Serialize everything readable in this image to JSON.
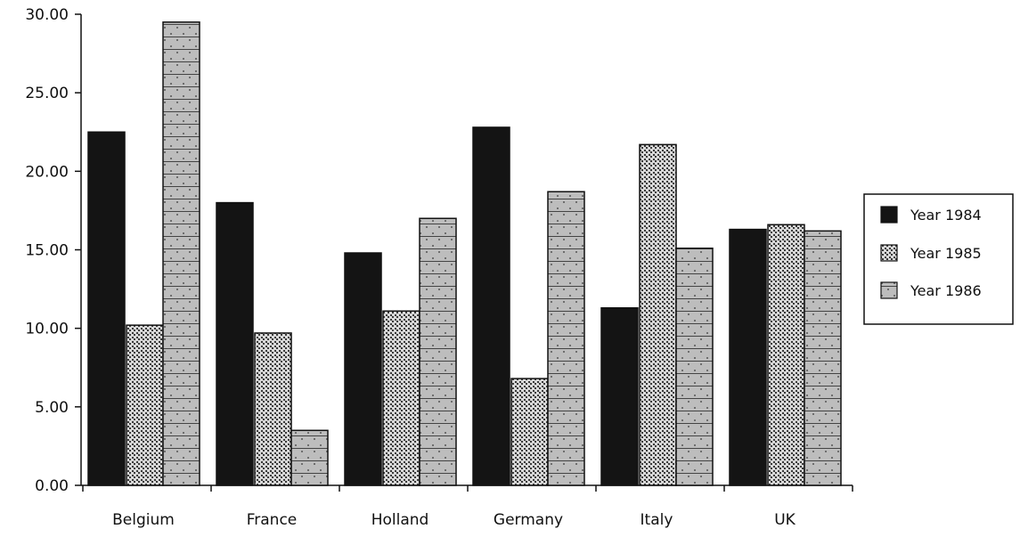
{
  "chart_data": {
    "type": "bar",
    "categories": [
      "Belgium",
      "France",
      "Holland",
      "Germany",
      "Italy",
      "UK"
    ],
    "series": [
      {
        "name": "Year 1984",
        "values": [
          22.5,
          18.0,
          14.8,
          22.8,
          11.3,
          16.3
        ]
      },
      {
        "name": "Year 1985",
        "values": [
          10.2,
          9.7,
          11.1,
          6.8,
          21.7,
          16.6
        ]
      },
      {
        "name": "Year 1986",
        "values": [
          29.5,
          3.5,
          17.0,
          18.7,
          15.1,
          16.2
        ]
      }
    ],
    "yticks": [
      "0.00",
      "5.00",
      "10.00",
      "15.00",
      "20.00",
      "25.00",
      "30.00"
    ],
    "ylim": [
      0,
      30
    ],
    "grid": false,
    "legend_position": "right",
    "colors": {
      "series_1984": "#141414",
      "series_1985": "#6b6b6b",
      "series_1986": "#a8a8a8",
      "axis": "#111111"
    }
  }
}
